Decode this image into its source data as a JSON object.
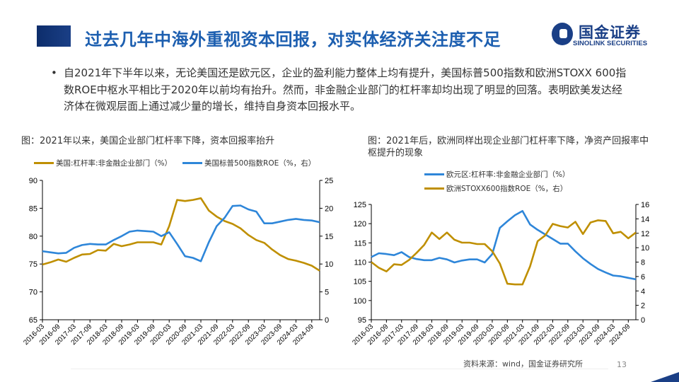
{
  "header": {
    "title": "过去几年中海外重视资本回报，对实体经济关注度不足"
  },
  "logo": {
    "cn": "国金证券",
    "en": "SINOLINK SECURITIES"
  },
  "bullet": {
    "marker": "•",
    "text": "自2021年下半年以来，无论美国还是欧元区，企业的盈利能力整体上均有提升，美国标普500指数和欧洲STOXX 600指数ROE中枢水平相比于2020年以前均有抬升。然而，非金融企业部门的杠杆率却均出现了明显的回落。表明欧美发达经济体在微观层面上通过减少量的增长，维持自身资本回报水平。"
  },
  "footer": {
    "source": "资料来源：wind，国金证券研究所",
    "page": "13"
  },
  "colors": {
    "gold": "#bf8f00",
    "blue": "#2e86d9",
    "title_blue": "#1d5fb0",
    "navy": "#1a3f86"
  },
  "chart_data": [
    {
      "type": "line",
      "title": "图：2021年以来，美国企业部门杠杆率下降，资本回报率抬升",
      "x_tick_labels": [
        "2016-03",
        "2016-09",
        "2017-03",
        "2017-09",
        "2018-03",
        "2018-09",
        "2019-03",
        "2019-09",
        "2020-03",
        "2020-09",
        "2021-03",
        "2021-09",
        "2022-03",
        "2022-09",
        "2023-03",
        "2023-09",
        "2024-03",
        "2024-09"
      ],
      "x": [
        "2016-03",
        "2016-06",
        "2016-09",
        "2016-12",
        "2017-03",
        "2017-06",
        "2017-09",
        "2017-12",
        "2018-03",
        "2018-06",
        "2018-09",
        "2018-12",
        "2019-03",
        "2019-06",
        "2019-09",
        "2019-12",
        "2020-03",
        "2020-06",
        "2020-09",
        "2020-12",
        "2021-03",
        "2021-06",
        "2021-09",
        "2021-12",
        "2022-03",
        "2022-06",
        "2022-09",
        "2022-12",
        "2023-03",
        "2023-06",
        "2023-09",
        "2023-12",
        "2024-03",
        "2024-06",
        "2024-09",
        "2024-12"
      ],
      "y_left": {
        "range": [
          65,
          90
        ],
        "ticks": [
          65,
          70,
          75,
          80,
          85,
          90
        ]
      },
      "y_right": {
        "range": [
          0,
          25
        ],
        "ticks": [
          0,
          5,
          10,
          15,
          20,
          25
        ]
      },
      "legend_position": "top",
      "grid": false,
      "series": [
        {
          "name": "美国:杠杆率:非金融企业部门（%）",
          "axis": "left",
          "color": "#bf8f00",
          "values": [
            74.9,
            75.3,
            75.8,
            75.4,
            76.1,
            76.7,
            76.8,
            77.5,
            77.4,
            78.6,
            78.2,
            78.5,
            78.9,
            78.9,
            78.9,
            78.5,
            81.8,
            86.5,
            86.3,
            86.5,
            86.8,
            84.6,
            83.5,
            82.7,
            82.2,
            81.4,
            80.2,
            79.3,
            78.8,
            77.6,
            76.6,
            75.9,
            75.6,
            75.2,
            74.7,
            73.8
          ]
        },
        {
          "name": "美国标普500指数ROE（%，右）",
          "axis": "right",
          "color": "#2e86d9",
          "values": [
            12.3,
            12.1,
            11.9,
            12.0,
            12.9,
            13.4,
            13.6,
            13.5,
            13.5,
            14.3,
            15.0,
            15.8,
            16.0,
            15.9,
            15.8,
            15.0,
            15.7,
            13.6,
            11.4,
            11.1,
            10.5,
            13.9,
            16.8,
            18.3,
            20.4,
            20.5,
            19.8,
            19.4,
            17.3,
            17.3,
            17.6,
            17.9,
            18.1,
            17.9,
            17.8,
            17.5
          ]
        }
      ]
    },
    {
      "type": "line",
      "title": "图：2021年后，欧洲同样出现企业部门杠杆率下降，净资产回报率中枢提升的现象",
      "x_tick_labels": [
        "2016-03",
        "2016-09",
        "2017-03",
        "2017-09",
        "2018-03",
        "2018-09",
        "2019-03",
        "2019-09",
        "2020-03",
        "2020-09",
        "2021-03",
        "2021-09",
        "2022-03",
        "2022-09",
        "2023-03",
        "2023-09",
        "2024-03",
        "2024-09"
      ],
      "x": [
        "2016-03",
        "2016-06",
        "2016-09",
        "2016-12",
        "2017-03",
        "2017-06",
        "2017-09",
        "2017-12",
        "2018-03",
        "2018-06",
        "2018-09",
        "2018-12",
        "2019-03",
        "2019-06",
        "2019-09",
        "2019-12",
        "2020-03",
        "2020-06",
        "2020-09",
        "2020-12",
        "2021-03",
        "2021-06",
        "2021-09",
        "2021-12",
        "2022-03",
        "2022-06",
        "2022-09",
        "2022-12",
        "2023-03",
        "2023-06",
        "2023-09",
        "2023-12",
        "2024-03",
        "2024-06",
        "2024-09",
        "2024-12"
      ],
      "y_left": {
        "range": [
          95,
          125
        ],
        "ticks": [
          95,
          100,
          105,
          110,
          115,
          120,
          125
        ]
      },
      "y_right": {
        "range": [
          0,
          16
        ],
        "ticks": [
          0,
          2,
          4,
          6,
          8,
          10,
          12,
          14,
          16
        ]
      },
      "legend_position": "top",
      "grid": false,
      "series": [
        {
          "name": "欧元区:杠杆率:非金融企业部门（%）",
          "axis": "left",
          "color": "#2e86d9",
          "values": [
            111.3,
            112.3,
            112.1,
            111.8,
            112.6,
            111.3,
            110.8,
            110.5,
            110.5,
            111.1,
            110.7,
            109.9,
            110.4,
            110.7,
            110.7,
            109.9,
            112.1,
            118.9,
            120.6,
            122.2,
            123.3,
            119.8,
            118.4,
            117.2,
            116.0,
            114.8,
            114.8,
            112.8,
            111.0,
            109.5,
            108.2,
            107.3,
            106.5,
            106.3,
            105.9,
            105.5
          ]
        },
        {
          "name": "欧洲STOXX600指数ROE（%，右）",
          "axis": "right",
          "color": "#bf8f00",
          "values": [
            8.0,
            7.2,
            6.7,
            7.7,
            7.6,
            8.3,
            9.3,
            10.4,
            12.1,
            11.2,
            12.1,
            11.1,
            10.7,
            10.7,
            10.5,
            10.5,
            9.5,
            7.8,
            5.0,
            4.9,
            4.9,
            7.4,
            10.9,
            11.7,
            13.3,
            13.0,
            12.8,
            13.6,
            11.9,
            13.5,
            13.8,
            13.7,
            12.0,
            12.2,
            11.3,
            12.1
          ]
        }
      ]
    }
  ]
}
